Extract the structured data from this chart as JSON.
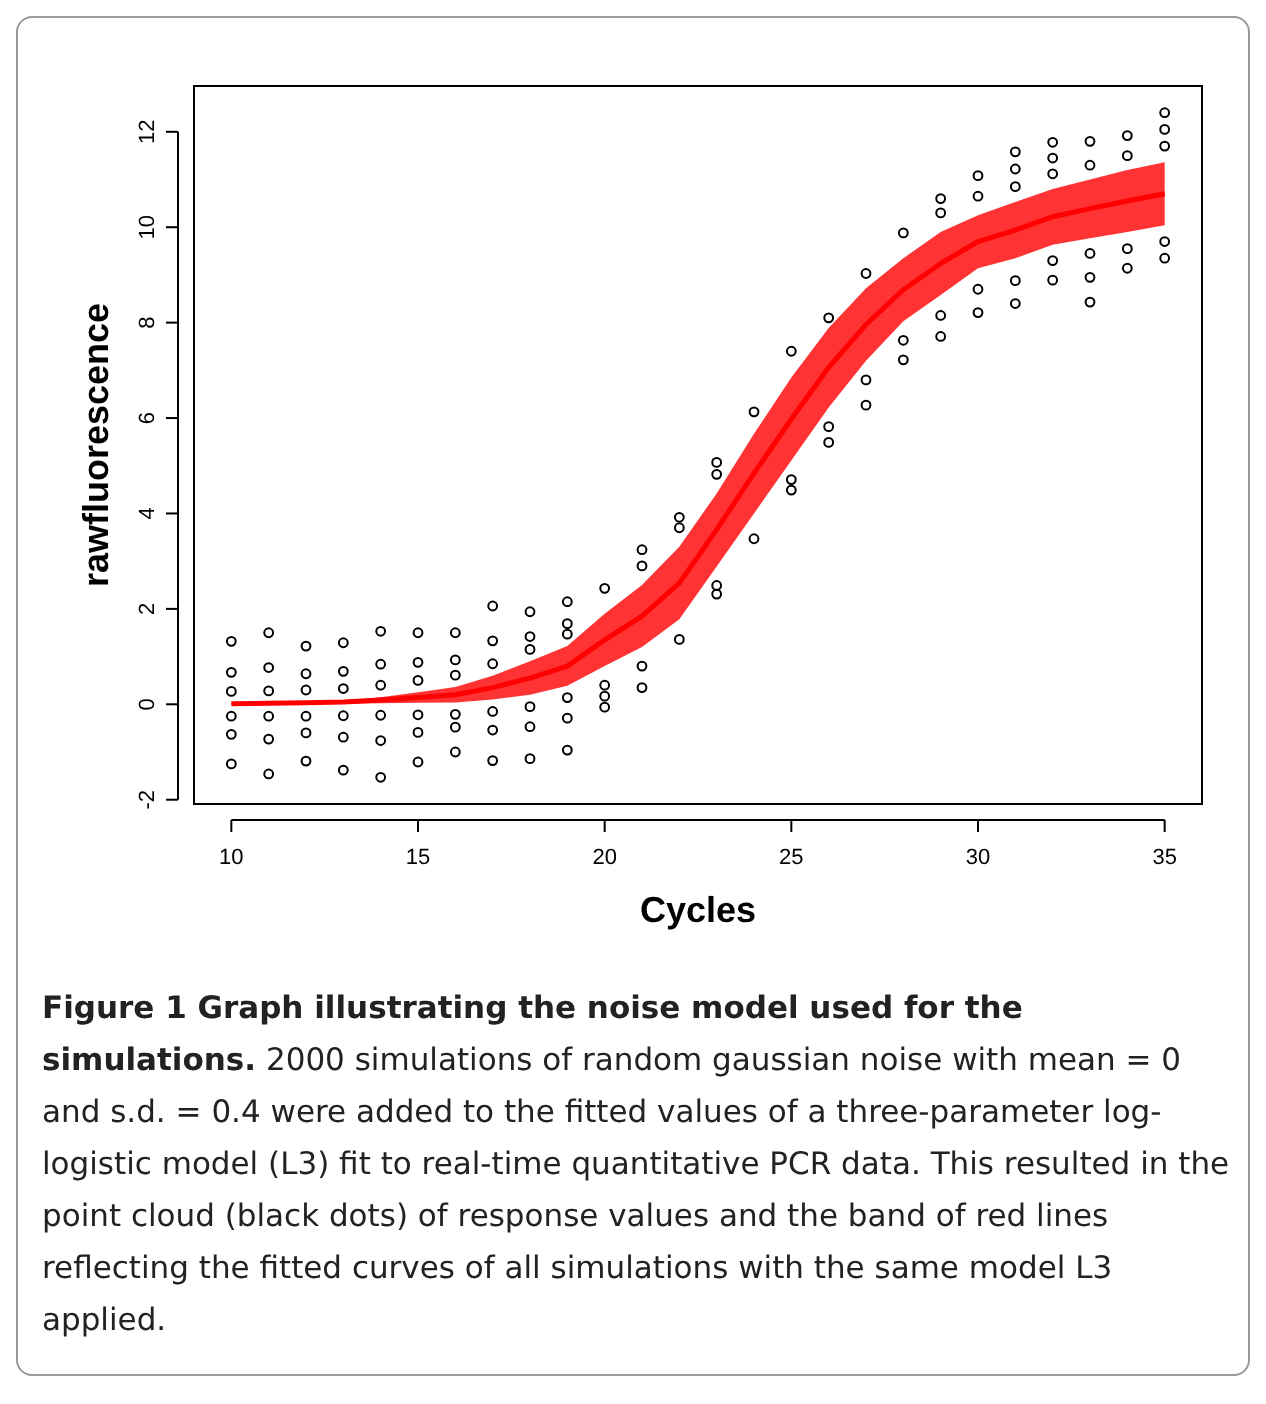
{
  "chart_data": {
    "type": "scatter",
    "xlabel": "Cycles",
    "ylabel": "rawfluorescence",
    "xlim": [
      9,
      36
    ],
    "xticks": [
      10,
      15,
      20,
      25,
      30,
      35
    ],
    "ylim": [
      -2.09,
      12.96
    ],
    "yticks": [
      -2,
      0,
      2,
      4,
      6,
      8,
      10,
      12
    ],
    "grid": false,
    "series": [
      {
        "color": "#000000",
        "marker": "circle",
        "x": [
          10,
          10,
          10,
          10,
          10,
          10,
          11,
          11,
          11,
          11,
          11,
          11,
          12,
          12,
          12,
          12,
          12,
          12,
          13,
          13,
          13,
          13,
          13,
          13,
          14,
          14,
          14,
          14,
          14,
          14,
          15,
          15,
          15,
          15,
          15,
          15,
          16,
          16,
          16,
          16,
          16,
          16,
          17,
          17,
          17,
          17,
          17,
          17,
          18,
          18,
          18,
          18,
          18,
          18,
          19,
          19,
          19,
          19,
          19,
          19,
          20,
          20,
          20,
          20,
          21,
          21,
          21,
          21,
          22,
          22,
          22,
          23,
          23,
          23,
          23,
          24,
          24,
          25,
          25,
          25,
          26,
          26,
          26,
          27,
          27,
          27,
          28,
          28,
          28,
          29,
          29,
          29,
          29,
          30,
          30,
          30,
          30,
          31,
          31,
          31,
          31,
          31,
          32,
          32,
          32,
          32,
          32,
          33,
          33,
          33,
          33,
          33,
          34,
          34,
          34,
          34,
          35,
          35,
          35,
          35,
          35
        ],
        "values": [
          -1.25,
          -0.63,
          -0.25,
          0.27,
          0.67,
          1.32,
          -1.46,
          -0.73,
          -0.25,
          0.28,
          0.77,
          1.5,
          -1.19,
          -0.6,
          -0.25,
          0.3,
          0.64,
          1.22,
          -1.38,
          -0.69,
          -0.24,
          0.33,
          0.69,
          1.29,
          -1.53,
          -0.76,
          -0.23,
          0.4,
          0.84,
          1.53,
          -1.21,
          -0.59,
          -0.22,
          0.5,
          0.88,
          1.5,
          -1.0,
          -0.48,
          -0.21,
          0.61,
          0.93,
          1.5,
          -1.18,
          -0.54,
          -0.15,
          0.85,
          1.33,
          2.06,
          -1.14,
          -0.47,
          -0.05,
          1.15,
          1.42,
          1.94,
          -0.96,
          -0.29,
          0.14,
          1.47,
          1.69,
          2.15,
          -0.06,
          0.17,
          0.4,
          2.43,
          0.35,
          0.8,
          2.9,
          3.24,
          1.36,
          3.7,
          3.92,
          2.31,
          2.49,
          4.82,
          5.07,
          3.47,
          6.13,
          4.49,
          4.71,
          7.4,
          5.49,
          5.82,
          8.1,
          6.27,
          6.8,
          9.03,
          7.22,
          7.63,
          9.88,
          7.71,
          8.15,
          10.3,
          10.6,
          8.21,
          8.7,
          10.65,
          11.08,
          8.4,
          8.88,
          10.85,
          11.22,
          11.58,
          8.89,
          9.3,
          11.12,
          11.45,
          11.78,
          8.43,
          8.95,
          9.45,
          11.3,
          11.8,
          9.14,
          9.55,
          11.5,
          11.92,
          9.35,
          9.7,
          11.7,
          12.05,
          12.4
        ]
      },
      {
        "type": "line",
        "color": "#ff0000",
        "marker": "none",
        "x": [
          10,
          11,
          12,
          13,
          14,
          15,
          16,
          17,
          18,
          19,
          20,
          21,
          22,
          23,
          24,
          25,
          26,
          27,
          28,
          29,
          30,
          31,
          32,
          33,
          34,
          35
        ],
        "values": [
          0.01,
          0.02,
          0.03,
          0.05,
          0.09,
          0.14,
          0.2,
          0.35,
          0.55,
          0.8,
          1.35,
          1.85,
          2.54,
          3.66,
          4.84,
          5.98,
          7.06,
          7.96,
          8.69,
          9.24,
          9.7,
          9.94,
          10.22,
          10.39,
          10.55,
          10.7
        ],
        "lower": [
          0,
          0,
          0,
          0.01,
          0.02,
          0.03,
          0.04,
          0.1,
          0.2,
          0.39,
          0.8,
          1.2,
          1.78,
          2.89,
          4.0,
          5.11,
          6.22,
          7.2,
          8.03,
          8.58,
          9.14,
          9.35,
          9.63,
          9.77,
          9.9,
          10.04
        ],
        "upper": [
          0.02,
          0.03,
          0.05,
          0.08,
          0.15,
          0.25,
          0.36,
          0.6,
          0.9,
          1.22,
          1.9,
          2.5,
          3.3,
          4.42,
          5.67,
          6.85,
          7.89,
          8.72,
          9.35,
          9.9,
          10.25,
          10.53,
          10.8,
          11.0,
          11.2,
          11.36
        ]
      }
    ],
    "annotations": [
      "Figure 1 Graph illustrating the noise model used for the simulations.",
      "2000 simulations of random gaussian noise with mean = 0 and s.d. = 0.4 were added to the fitted values of a three-parameter log-logistic model (L3) fit to real-time quantitative PCR data. This resulted in the point cloud (black dots) of response values and the band of red lines reflecting the fitted curves of all simulations with the same model L3 applied."
    ]
  }
}
